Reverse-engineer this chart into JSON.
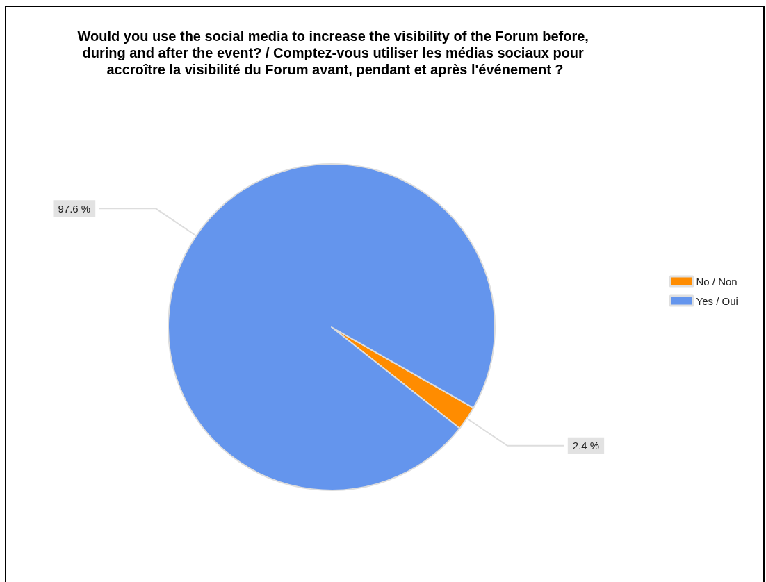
{
  "chart_data": {
    "type": "pie",
    "title": "Would you use the social media to increase the visibility of the Forum before, during and after the event? / Comptez-vous utiliser les médias sociaux pour accroître la visibilité du Forum avant, pendant et après l'événement ?",
    "categories": [
      "No / Non",
      "Yes / Oui"
    ],
    "values": [
      2.4,
      97.6
    ],
    "colors": [
      "#ff8c00",
      "#6495ed"
    ],
    "value_labels": [
      "2.4 %",
      "97.6 %"
    ],
    "legend": "right"
  }
}
